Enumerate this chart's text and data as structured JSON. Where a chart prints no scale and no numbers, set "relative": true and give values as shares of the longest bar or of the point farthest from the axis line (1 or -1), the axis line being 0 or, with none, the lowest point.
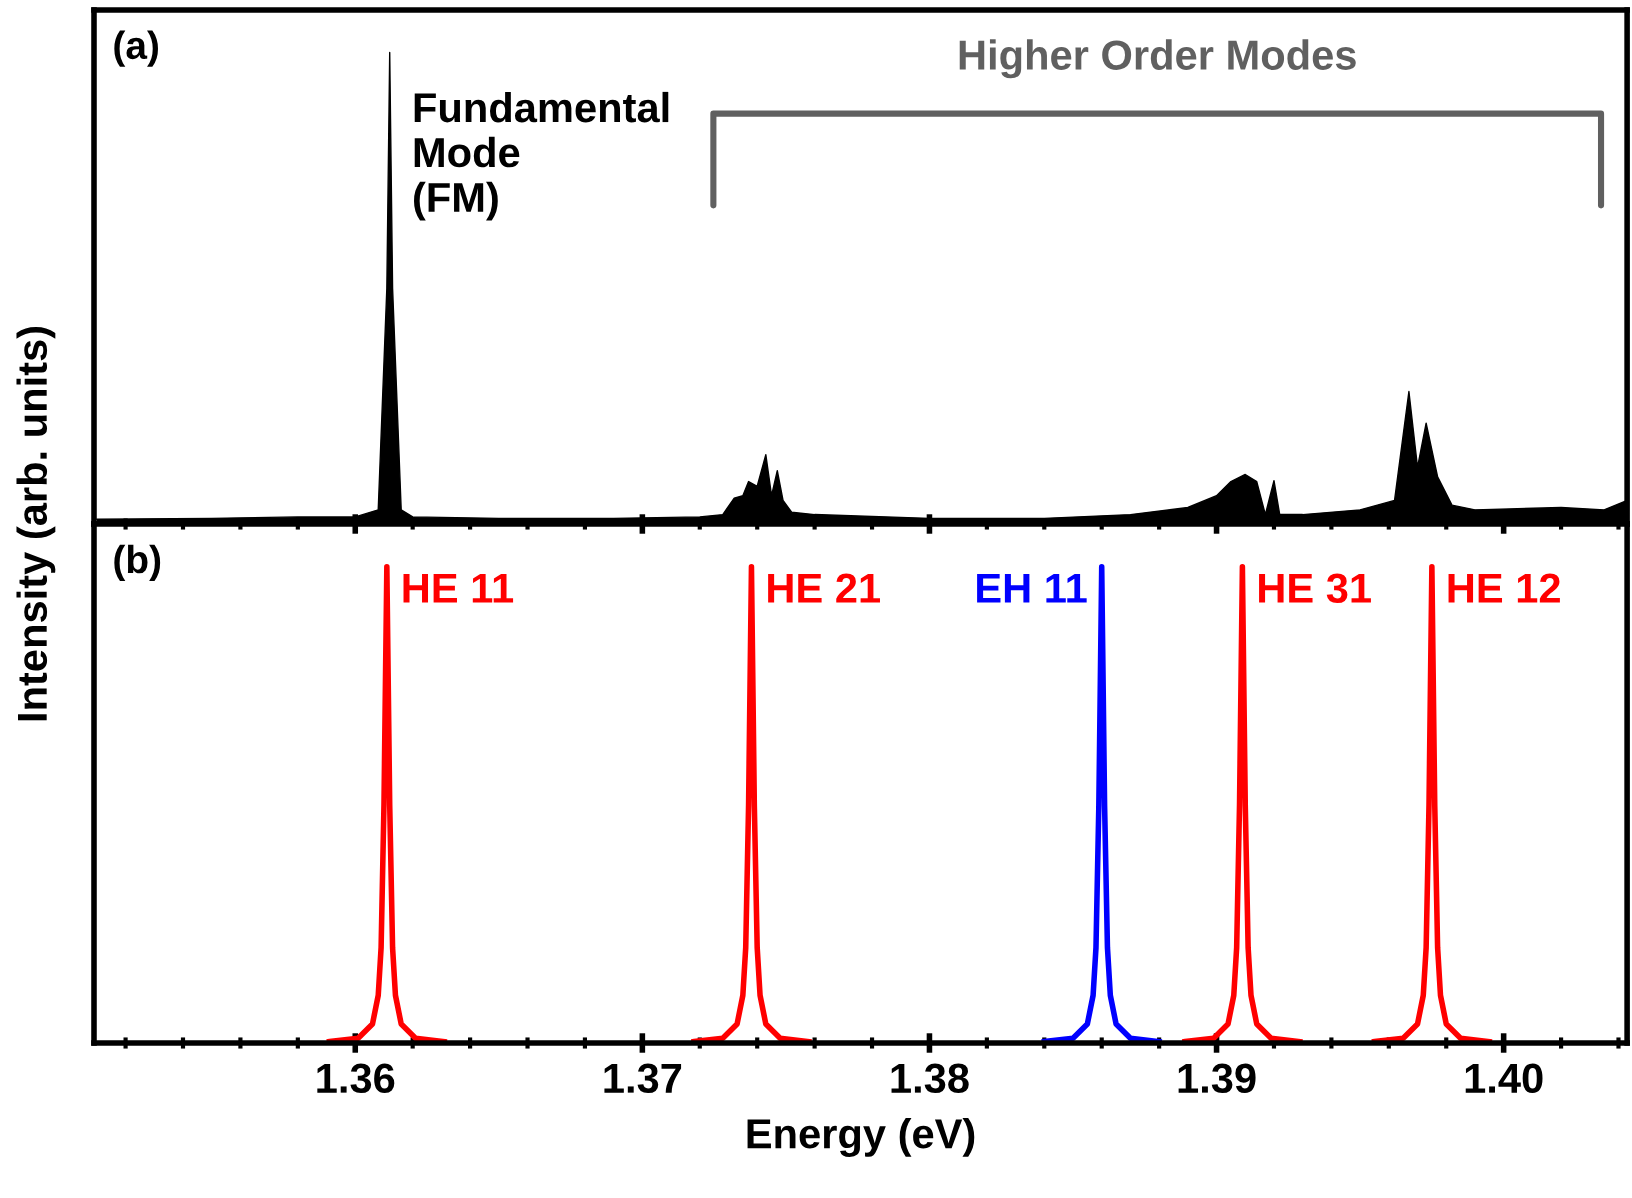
{
  "chart_data": [
    {
      "type": "area",
      "relative": true,
      "ylabel": "Intensity (arb. units)",
      "annotations": [
        "(a)",
        {
          "text": "Fundamental\nMode\n(FM)",
          "x": 1.3612,
          "y": 0.78
        },
        "Higher Order Modes"
      ],
      "tick_labels": false,
      "xlim": [
        1.3509,
        1.4043
      ],
      "xticks": [
        {
          "value": 1.352,
          "label": null
        },
        {
          "value": 1.354,
          "label": null
        },
        {
          "value": 1.356,
          "label": null
        },
        {
          "value": 1.358,
          "label": null
        },
        1.36,
        {
          "value": 1.362,
          "label": null
        },
        {
          "value": 1.364,
          "label": null
        },
        {
          "value": 1.366,
          "label": null
        },
        {
          "value": 1.368,
          "label": null
        },
        1.37,
        {
          "value": 1.372,
          "label": null
        },
        {
          "value": 1.374,
          "label": null
        },
        {
          "value": 1.376,
          "label": null
        },
        {
          "value": 1.378,
          "label": null
        },
        1.38,
        {
          "value": 1.382,
          "label": null
        },
        {
          "value": 1.384,
          "label": null
        },
        {
          "value": 1.386,
          "label": null
        },
        {
          "value": 1.388,
          "label": null
        },
        1.39,
        {
          "value": 1.392,
          "label": null
        },
        {
          "value": 1.394,
          "label": null
        },
        {
          "value": 1.396,
          "label": null
        },
        {
          "value": 1.398,
          "label": null
        },
        1.4,
        {
          "value": 1.402,
          "label": null
        },
        {
          "value": 1.404,
          "label": null
        }
      ],
      "series": [
        {
          "color": "#000000",
          "x": [
            1.351,
            1.355,
            1.358,
            1.36,
            1.3608,
            1.3611,
            1.3612,
            1.3613,
            1.3616,
            1.362,
            1.365,
            1.369,
            1.372,
            1.3728,
            1.3732,
            1.3735,
            1.3737,
            1.374,
            1.3743,
            1.3745,
            1.3747,
            1.3749,
            1.3752,
            1.376,
            1.38,
            1.384,
            1.387,
            1.389,
            1.39,
            1.3905,
            1.391,
            1.3914,
            1.3917,
            1.392,
            1.3922,
            1.393,
            1.395,
            1.3962,
            1.3967,
            1.397,
            1.3973,
            1.3977,
            1.3982,
            1.399,
            1.402,
            1.4035,
            1.4043
          ],
          "values": [
            0.01,
            0.012,
            0.015,
            0.015,
            0.03,
            0.5,
            1.0,
            0.5,
            0.03,
            0.015,
            0.012,
            0.012,
            0.015,
            0.02,
            0.055,
            0.06,
            0.09,
            0.08,
            0.147,
            0.06,
            0.113,
            0.05,
            0.025,
            0.02,
            0.012,
            0.012,
            0.02,
            0.035,
            0.06,
            0.09,
            0.105,
            0.09,
            0.02,
            0.092,
            0.02,
            0.02,
            0.03,
            0.05,
            0.281,
            0.12,
            0.214,
            0.1,
            0.04,
            0.03,
            0.035,
            0.03,
            0.05
          ]
        }
      ]
    },
    {
      "type": "line",
      "relative": true,
      "xlabel": "Energy (eV)",
      "annotations": [
        "(b)"
      ],
      "tick_labels": "x",
      "legend": false,
      "xlim": [
        1.3509,
        1.4043
      ],
      "xticks": [
        {
          "value": 1.352,
          "label": null
        },
        {
          "value": 1.354,
          "label": null
        },
        {
          "value": 1.356,
          "label": null
        },
        {
          "value": 1.358,
          "label": null
        },
        1.36,
        {
          "value": 1.362,
          "label": null
        },
        {
          "value": 1.364,
          "label": null
        },
        {
          "value": 1.366,
          "label": null
        },
        {
          "value": 1.368,
          "label": null
        },
        1.37,
        {
          "value": 1.372,
          "label": null
        },
        {
          "value": 1.374,
          "label": null
        },
        {
          "value": 1.376,
          "label": null
        },
        {
          "value": 1.378,
          "label": null
        },
        1.38,
        {
          "value": 1.382,
          "label": null
        },
        {
          "value": 1.384,
          "label": null
        },
        {
          "value": 1.386,
          "label": null
        },
        {
          "value": 1.388,
          "label": null
        },
        1.39,
        {
          "value": 1.392,
          "label": null
        },
        {
          "value": 1.394,
          "label": null
        },
        {
          "value": 1.396,
          "label": null
        },
        {
          "value": 1.398,
          "label": null
        },
        {
          "value": 1.4,
          "label": "1.40"
        },
        {
          "value": 1.402,
          "label": null
        },
        {
          "value": 1.404,
          "label": null
        }
      ],
      "series": [
        {
          "name": "HE 11",
          "color": "#ff0000",
          "x": [
            1.3591,
            1.3601,
            1.3606,
            1.3608,
            1.3609,
            1.361,
            1.3611,
            1.3612,
            1.3613,
            1.3614,
            1.3616,
            1.3621,
            1.3631
          ],
          "values": [
            0.003,
            0.01,
            0.04,
            0.1,
            0.2,
            0.5,
            1,
            0.5,
            0.2,
            0.1,
            0.04,
            0.01,
            0.003
          ]
        },
        {
          "name": "HE 21",
          "color": "#ff0000",
          "x": [
            1.3718,
            1.3728,
            1.3733,
            1.3735,
            1.3736,
            1.3737,
            1.3738,
            1.3739,
            1.374,
            1.3741,
            1.3743,
            1.3748,
            1.3758
          ],
          "values": [
            0.003,
            0.01,
            0.04,
            0.1,
            0.2,
            0.5,
            1,
            0.5,
            0.2,
            0.1,
            0.04,
            0.01,
            0.003
          ]
        },
        {
          "name": "EH 11",
          "color": "#0000ff",
          "x": [
            1.384,
            1.385,
            1.3855,
            1.3857,
            1.3858,
            1.3859,
            1.386,
            1.3861,
            1.3862,
            1.3863,
            1.3865,
            1.387,
            1.388
          ],
          "values": [
            0.003,
            0.01,
            0.04,
            0.1,
            0.2,
            0.5,
            1,
            0.5,
            0.2,
            0.1,
            0.04,
            0.01,
            0.003
          ]
        },
        {
          "name": "HE 31",
          "color": "#ff0000",
          "x": [
            1.3889,
            1.3899,
            1.3904,
            1.3906,
            1.3907,
            1.3908,
            1.3909,
            1.391,
            1.3911,
            1.3912,
            1.3914,
            1.3919,
            1.3929
          ],
          "values": [
            0.003,
            0.01,
            0.04,
            0.1,
            0.2,
            0.5,
            1,
            0.5,
            0.2,
            0.1,
            0.04,
            0.01,
            0.003
          ]
        },
        {
          "name": "HE 12",
          "color": "#ff0000",
          "x": [
            1.3955,
            1.3965,
            1.397,
            1.3972,
            1.3973,
            1.3974,
            1.3975,
            1.3976,
            1.3977,
            1.3978,
            1.398,
            1.3985,
            1.3995
          ],
          "values": [
            0.003,
            0.01,
            0.04,
            0.1,
            0.2,
            0.5,
            1,
            0.5,
            0.2,
            0.1,
            0.04,
            0.01,
            0.003
          ]
        }
      ]
    }
  ]
}
